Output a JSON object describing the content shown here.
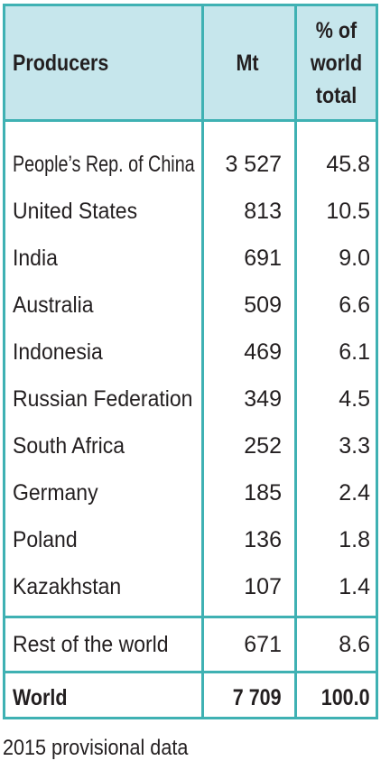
{
  "table": {
    "headers": {
      "producers": "Producers",
      "mt": "Mt",
      "pct_line1": "% of",
      "pct_line2": "world",
      "pct_line3": "total"
    },
    "rows": [
      {
        "producer": "People’s Rep. of China",
        "mt": "3 527",
        "pct": "45.8"
      },
      {
        "producer": "United States",
        "mt": "813",
        "pct": "10.5"
      },
      {
        "producer": "India",
        "mt": "691",
        "pct": "9.0"
      },
      {
        "producer": "Australia",
        "mt": "509",
        "pct": "6.6"
      },
      {
        "producer": "Indonesia",
        "mt": "469",
        "pct": "6.1"
      },
      {
        "producer": "Russian Federation",
        "mt": "349",
        "pct": "4.5"
      },
      {
        "producer": "South Africa",
        "mt": "252",
        "pct": "3.3"
      },
      {
        "producer": "Germany",
        "mt": "185",
        "pct": "2.4"
      },
      {
        "producer": "Poland",
        "mt": "136",
        "pct": "1.8"
      },
      {
        "producer": "Kazakhstan",
        "mt": "107",
        "pct": "1.4"
      }
    ],
    "rest": {
      "producer": "Rest of the world",
      "mt": "671",
      "pct": "8.6"
    },
    "world": {
      "producer": "World",
      "mt": "7 709",
      "pct": "100.0"
    }
  },
  "footnote": "2015 provisional data",
  "colors": {
    "border": "#3fb1b3",
    "header_bg": "#c6e6ec",
    "text": "#231f20"
  }
}
